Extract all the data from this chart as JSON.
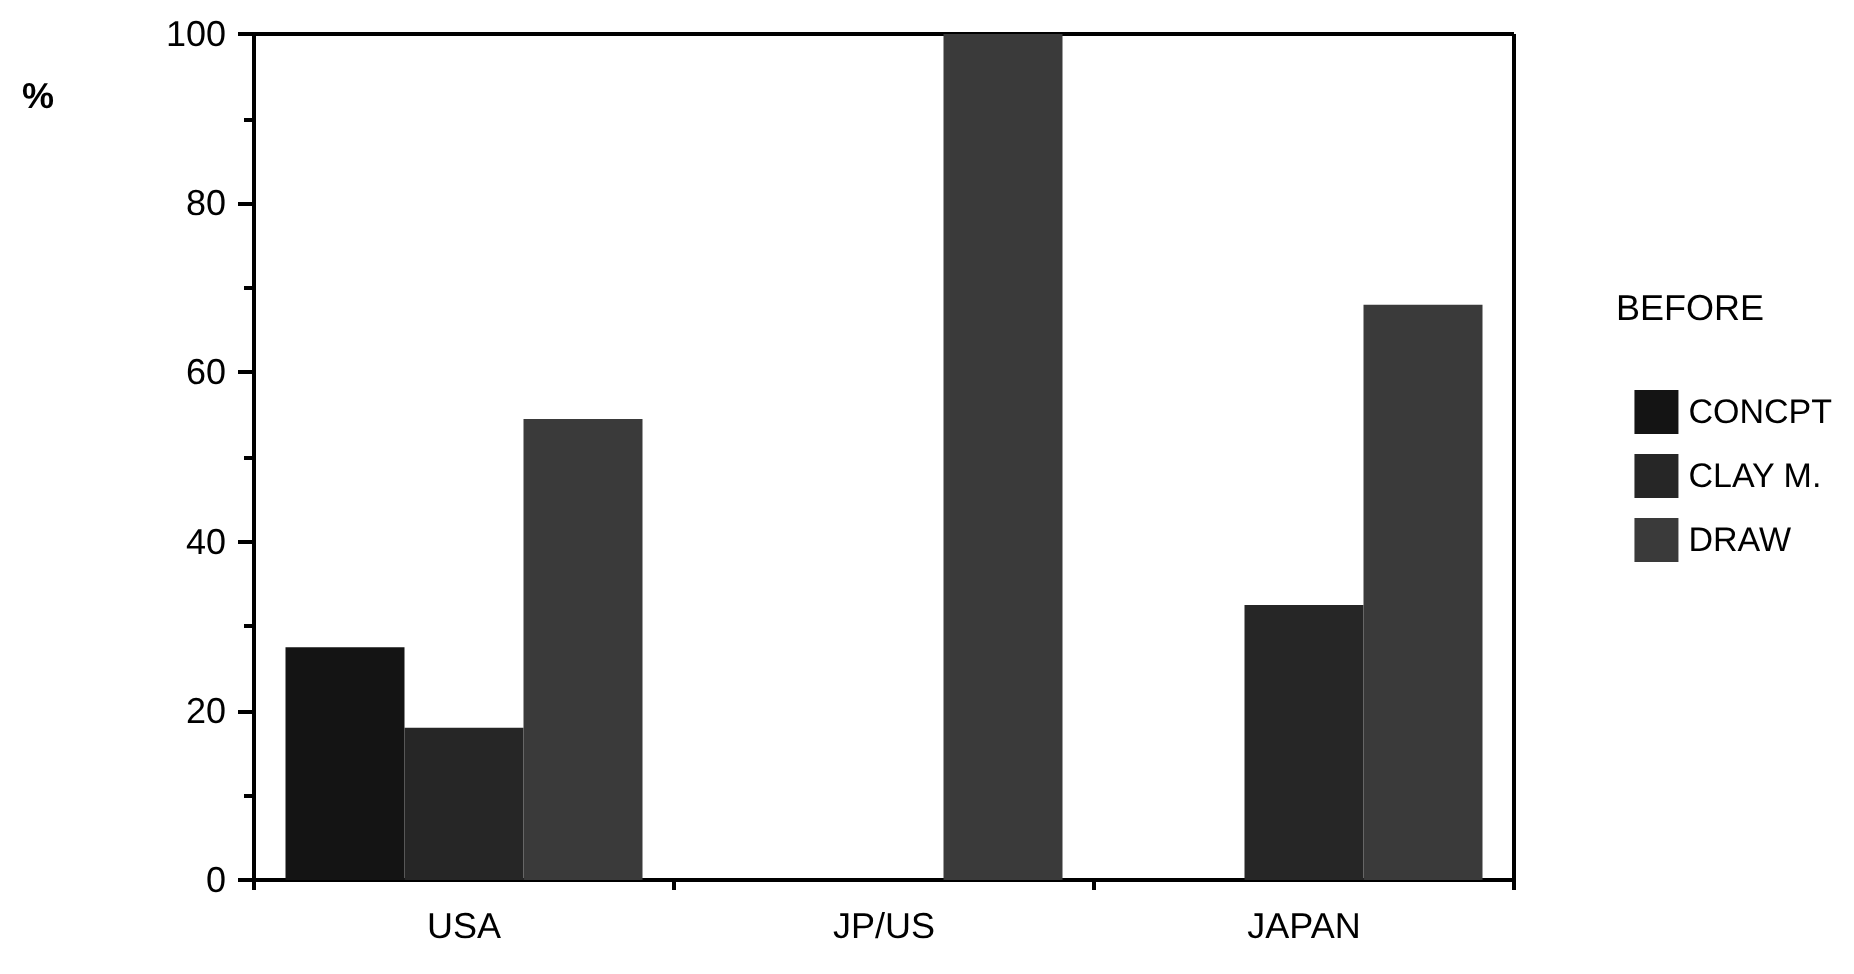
{
  "chart_data": {
    "type": "bar",
    "ylabel": "%",
    "legend_title": "BEFORE",
    "categories": [
      "USA",
      "JP/US",
      "JAPAN"
    ],
    "series": [
      {
        "name": "CONCPT",
        "color": "#141414",
        "values": [
          27.5,
          0,
          0
        ]
      },
      {
        "name": "CLAY M.",
        "color": "#262626",
        "values": [
          18,
          0,
          32.5
        ]
      },
      {
        "name": "DRAW",
        "color": "#3a3a3a",
        "values": [
          54.5,
          100,
          68
        ]
      }
    ],
    "ylim": [
      0,
      100
    ],
    "yticks": [
      0,
      20,
      40,
      60,
      80,
      100
    ],
    "grid": false,
    "legend": "right"
  }
}
